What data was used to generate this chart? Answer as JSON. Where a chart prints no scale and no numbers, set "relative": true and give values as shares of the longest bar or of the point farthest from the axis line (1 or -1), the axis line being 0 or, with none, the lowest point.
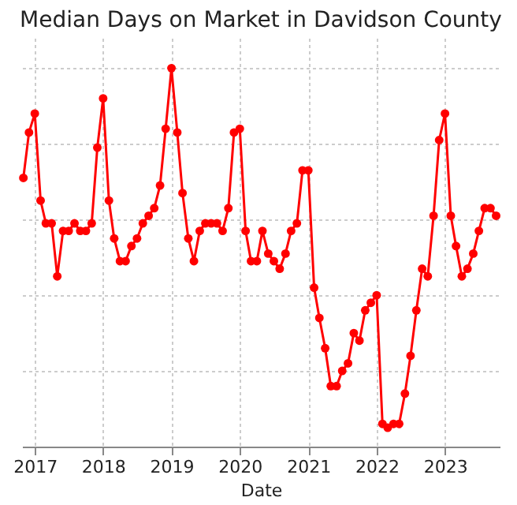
{
  "chart_data": {
    "type": "line",
    "title": "Median Days on Market in Davidson County",
    "xlabel": "Date",
    "x": [
      "2016-11",
      "2016-12",
      "2017-01",
      "2017-02",
      "2017-03",
      "2017-04",
      "2017-05",
      "2017-06",
      "2017-07",
      "2017-08",
      "2017-09",
      "2017-10",
      "2017-11",
      "2017-12",
      "2018-01",
      "2018-02",
      "2018-03",
      "2018-04",
      "2018-05",
      "2018-06",
      "2018-07",
      "2018-08",
      "2018-09",
      "2018-10",
      "2018-11",
      "2018-12",
      "2019-01",
      "2019-02",
      "2019-03",
      "2019-04",
      "2019-05",
      "2019-06",
      "2019-07",
      "2019-08",
      "2019-09",
      "2019-10",
      "2019-11",
      "2019-12",
      "2020-01",
      "2020-02",
      "2020-03",
      "2020-04",
      "2020-05",
      "2020-06",
      "2020-07",
      "2020-08",
      "2020-09",
      "2020-10",
      "2020-11",
      "2020-12",
      "2021-01",
      "2021-02",
      "2021-03",
      "2021-04",
      "2021-05",
      "2021-06",
      "2021-07",
      "2021-08",
      "2021-09",
      "2021-10",
      "2021-11",
      "2021-12",
      "2022-01",
      "2022-02",
      "2022-03",
      "2022-04",
      "2022-05",
      "2022-06",
      "2022-07",
      "2022-08",
      "2022-09",
      "2022-10",
      "2022-11",
      "2022-12",
      "2023-01",
      "2023-02",
      "2023-03",
      "2023-04",
      "2023-05",
      "2023-06",
      "2023-07",
      "2023-08",
      "2023-09",
      "2023-10"
    ],
    "series": [
      {
        "color": "#ff0000",
        "values": [
          0.71,
          0.83,
          0.88,
          0.65,
          0.59,
          0.59,
          0.45,
          0.57,
          0.57,
          0.59,
          0.57,
          0.57,
          0.59,
          0.79,
          0.92,
          0.65,
          0.55,
          0.49,
          0.49,
          0.53,
          0.55,
          0.59,
          0.61,
          0.63,
          0.69,
          0.84,
          1,
          0.83,
          0.67,
          0.55,
          0.49,
          0.57,
          0.59,
          0.59,
          0.59,
          0.57,
          0.63,
          0.83,
          0.84,
          0.57,
          0.49,
          0.49,
          0.57,
          0.51,
          0.49,
          0.47,
          0.51,
          0.57,
          0.59,
          0.73,
          0.73,
          0.42,
          0.34,
          0.26,
          0.16,
          0.16,
          0.2,
          0.22,
          0.3,
          0.28,
          0.36,
          0.38,
          0.4,
          0.06,
          0.05,
          0.06,
          0.06,
          0.14,
          0.24,
          0.36,
          0.47,
          0.45,
          0.61,
          0.81,
          0.88,
          0.61,
          0.53,
          0.45,
          0.47,
          0.51,
          0.57,
          0.63,
          0.63,
          0.61
        ]
      }
    ],
    "relative": true,
    "xlim": [
      "2016-10-25",
      "2023-10-20"
    ],
    "xticks": [
      "2017",
      "2018",
      "2019",
      "2020",
      "2021",
      "2022",
      "2023"
    ],
    "grid": true,
    "marker": "circle",
    "line_style": "solid"
  }
}
